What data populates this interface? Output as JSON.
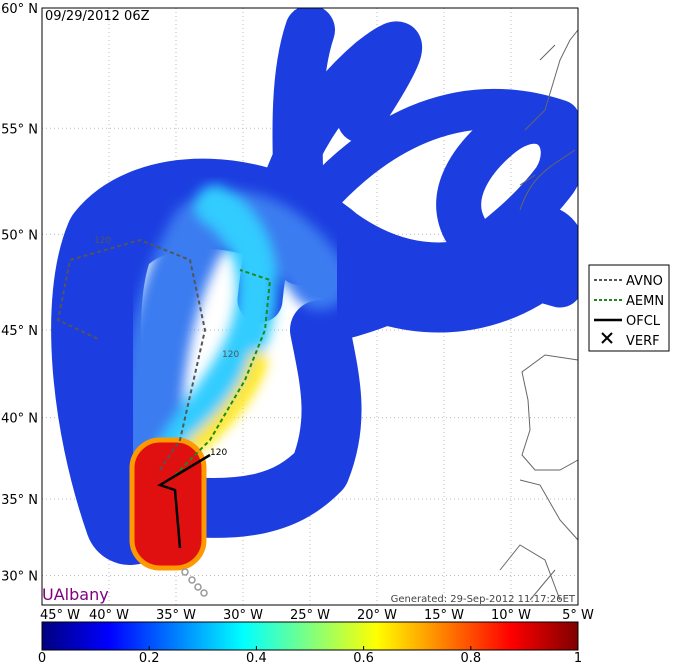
{
  "title": "09/29/2012 06Z",
  "extent": {
    "lon": [
      -45,
      -5
    ],
    "lat": [
      28,
      60
    ]
  },
  "lat_ticks": [
    {
      "value": 30,
      "label": "30° N"
    },
    {
      "value": 35,
      "label": "35° N"
    },
    {
      "value": 40,
      "label": "40° N"
    },
    {
      "value": 45,
      "label": "45° N"
    },
    {
      "value": 50,
      "label": "50° N"
    },
    {
      "value": 55,
      "label": "55° N"
    },
    {
      "value": 60,
      "label": "60° N"
    }
  ],
  "lon_ticks": [
    {
      "value": -45,
      "label": "45° W"
    },
    {
      "value": -40,
      "label": "40° W"
    },
    {
      "value": -35,
      "label": "35° W"
    },
    {
      "value": -30,
      "label": "30° W"
    },
    {
      "value": -25,
      "label": "25° W"
    },
    {
      "value": -20,
      "label": "20° W"
    },
    {
      "value": -15,
      "label": "15° W"
    },
    {
      "value": -10,
      "label": "10° W"
    },
    {
      "value": -5,
      "label": "5° W"
    }
  ],
  "legend": [
    "AVNO",
    "AEMN",
    "OFCL",
    "VERF"
  ],
  "track_labels": [
    "120",
    "120",
    "120"
  ],
  "watermark": "UAlbany",
  "generated": "Generated: 29-Sep-2012 11:17:26ET",
  "colorbar": {
    "range": [
      0,
      1
    ],
    "ticks": [
      0,
      0.2,
      0.4,
      0.6,
      0.8,
      1
    ]
  }
}
